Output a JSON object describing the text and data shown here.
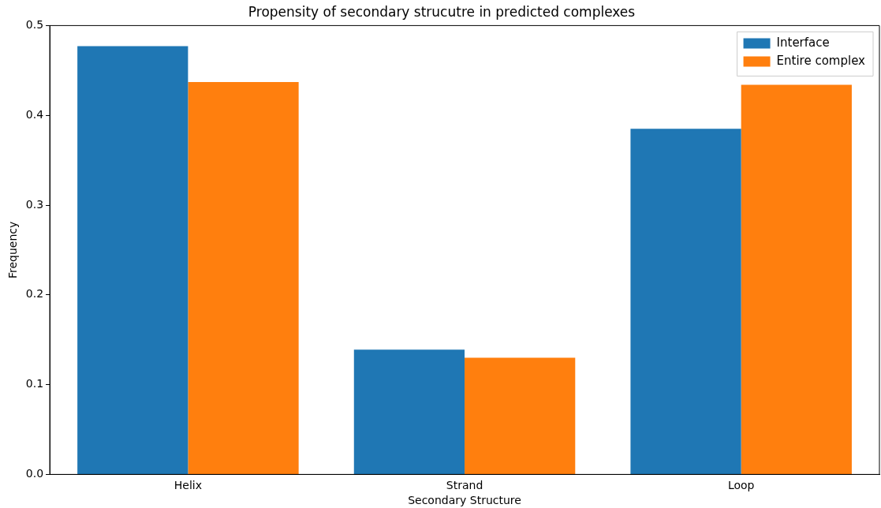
{
  "chart_data": {
    "type": "bar",
    "title": "Propensity of secondary strucutre in predicted complexes",
    "xlabel": "Secondary Structure",
    "ylabel": "Frequency",
    "categories": [
      "Helix",
      "Strand",
      "Loop"
    ],
    "series": [
      {
        "name": "Interface",
        "color": "#1f77b4",
        "values": [
          0.477,
          0.139,
          0.385
        ]
      },
      {
        "name": "Entire complex",
        "color": "#ff7f0e",
        "values": [
          0.437,
          0.13,
          0.434
        ]
      }
    ],
    "ylim": [
      0,
      0.5
    ],
    "yticks": [
      {
        "value": 0,
        "label": "0.0"
      },
      0.1,
      0.2,
      0.3,
      0.4,
      0.5
    ],
    "grid": false,
    "legend": "top right"
  }
}
